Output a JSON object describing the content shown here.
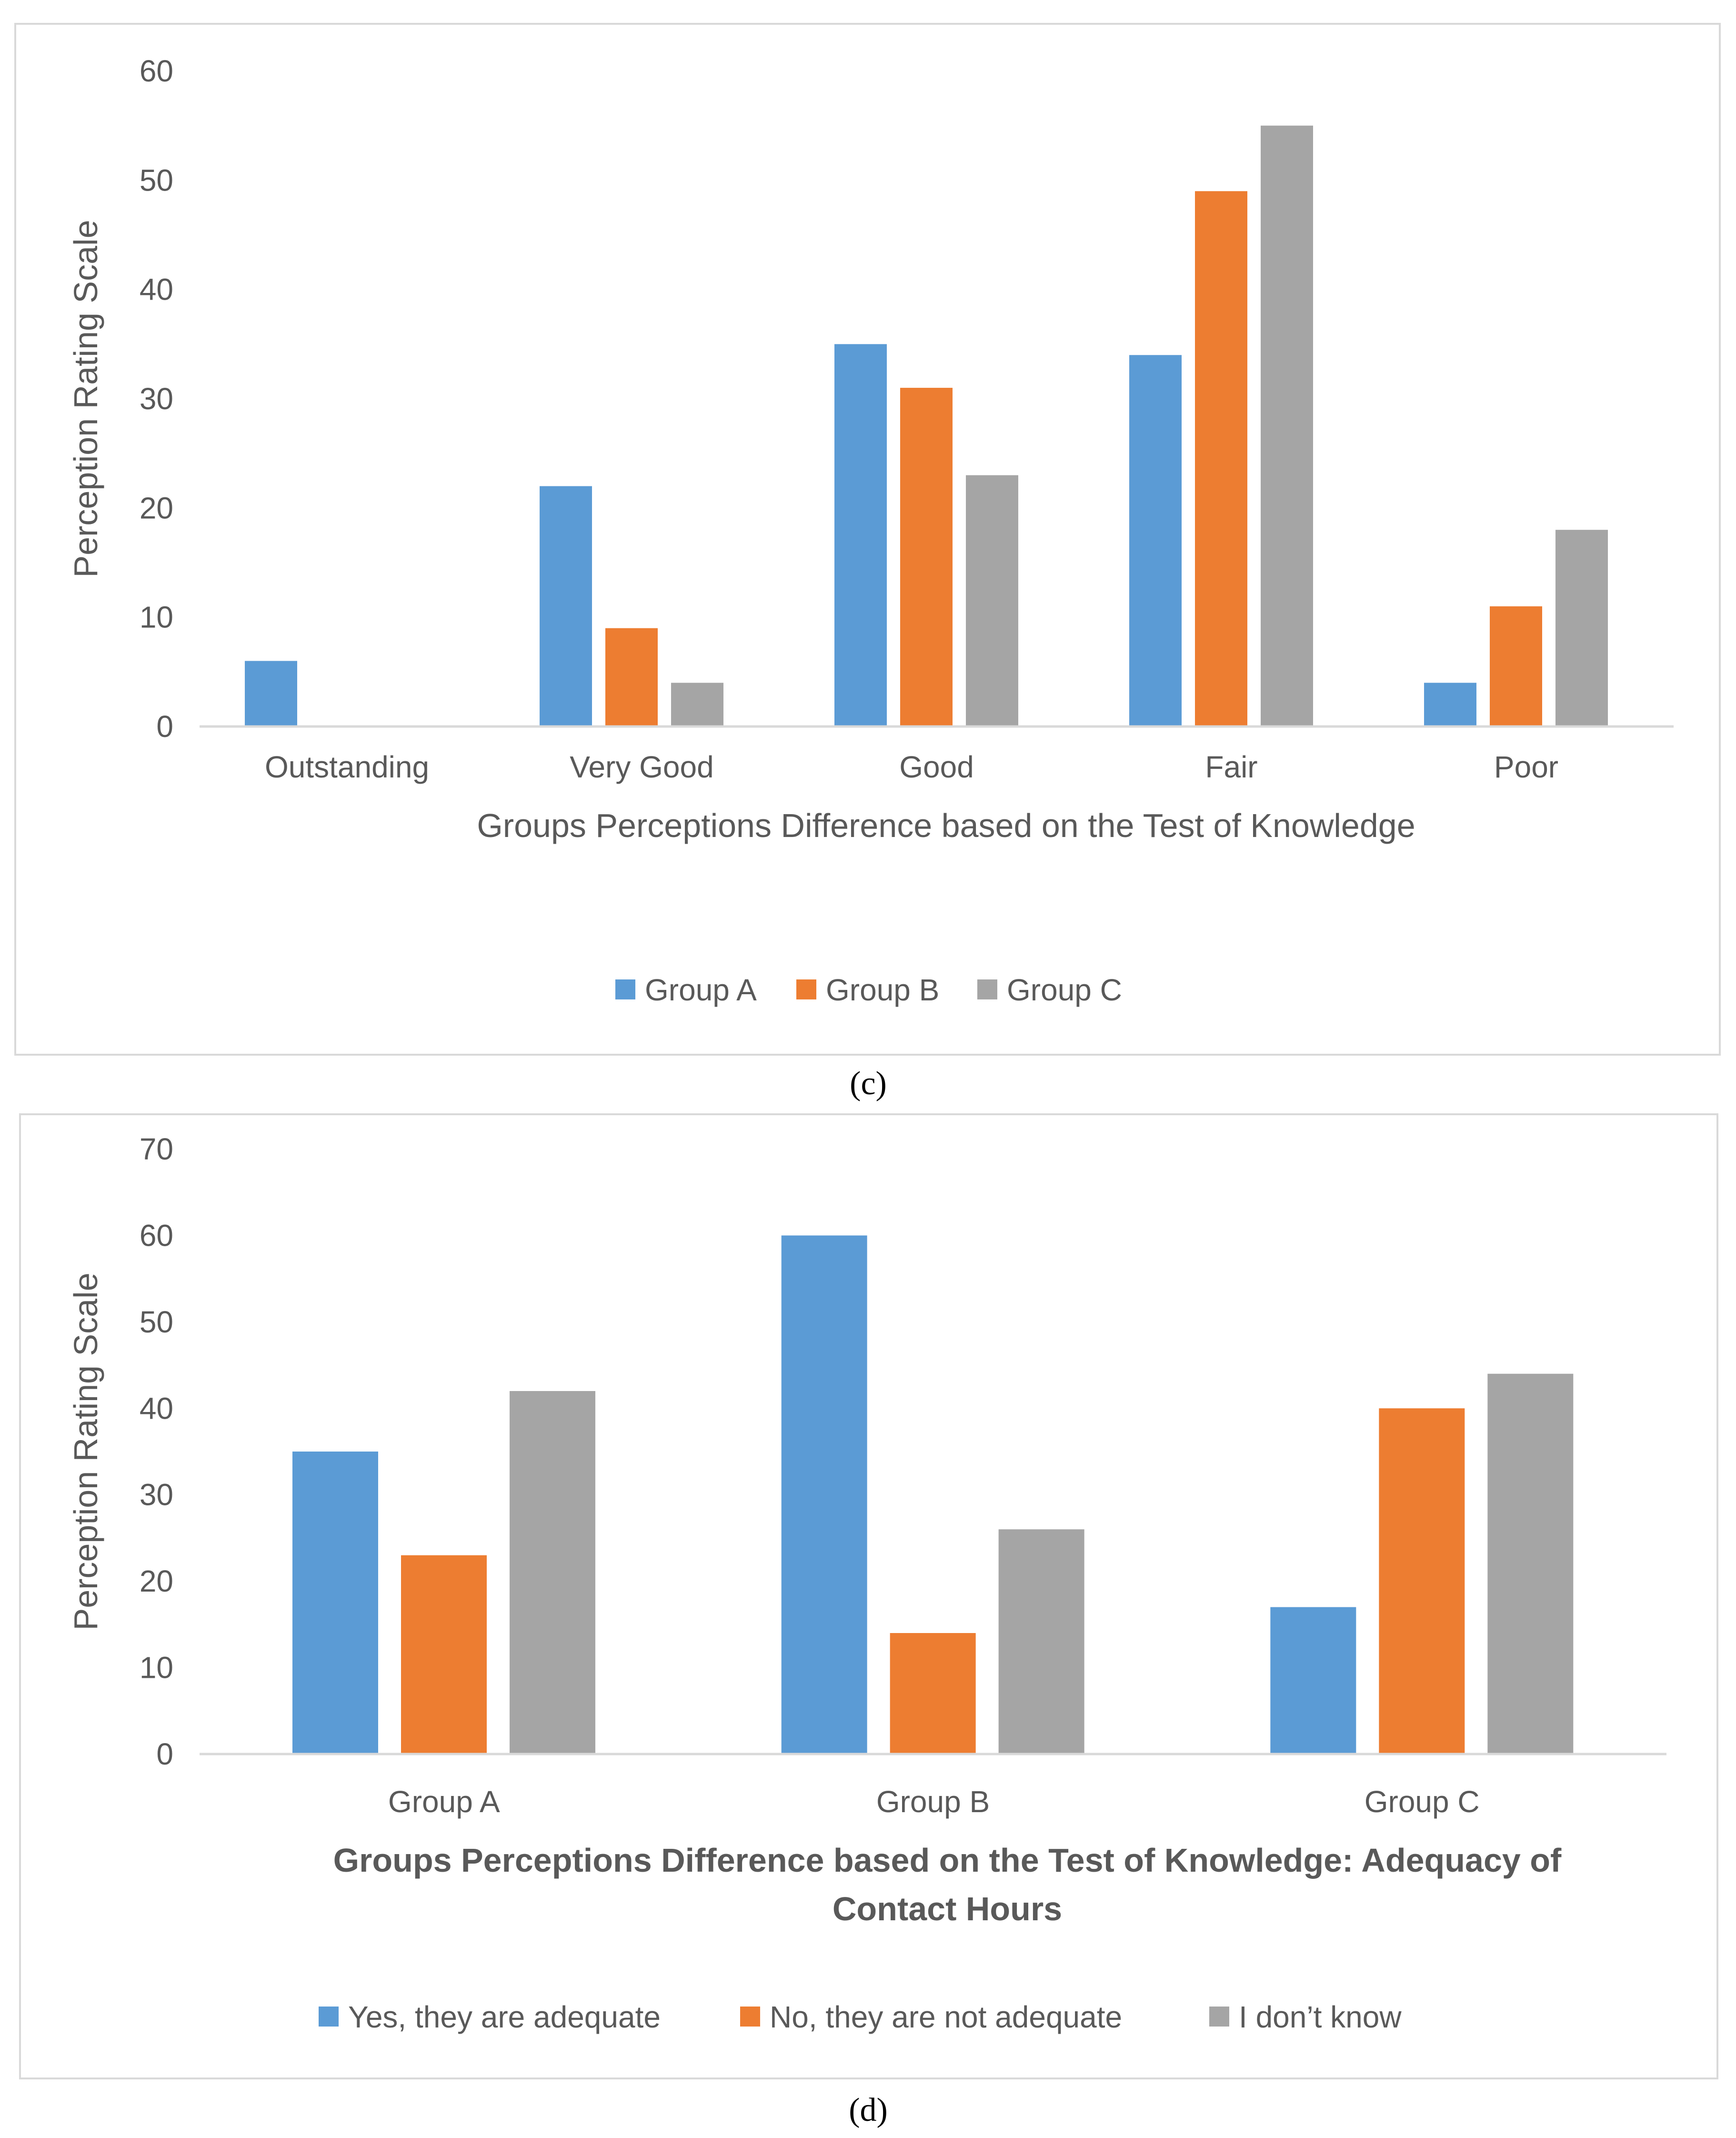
{
  "colors": {
    "blue": "#5b9bd5",
    "orange": "#ed7d31",
    "gray": "#a5a5a5",
    "axis": "#d9d9d9",
    "text": "#595959"
  },
  "captions": {
    "c": "(c)",
    "d": "(d)"
  },
  "chart_data": [
    {
      "type": "bar",
      "title": "",
      "xlabel": "Groups Perceptions Difference based on the Test of Knowledge",
      "ylabel": "Perception Rating Scale",
      "categories": [
        "Outstanding",
        "Very Good",
        "Good",
        "Fair",
        "Poor"
      ],
      "series": [
        {
          "name": "Group A",
          "color": "#5b9bd5",
          "values": [
            6,
            22,
            35,
            34,
            4
          ]
        },
        {
          "name": "Group B",
          "color": "#ed7d31",
          "values": [
            0,
            9,
            31,
            49,
            11
          ]
        },
        {
          "name": "Group C",
          "color": "#a5a5a5",
          "values": [
            0,
            4,
            23,
            55,
            18
          ]
        }
      ],
      "ylim": [
        0,
        60
      ],
      "yticks": [
        0,
        10,
        20,
        30,
        40,
        50,
        60
      ],
      "grid": false,
      "legend": "bottom"
    },
    {
      "type": "bar",
      "title": "",
      "xlabel": "Groups Perceptions Difference based on the Test of Knowledge: Adequacy of Contact Hours",
      "xlabel_lines": [
        "Groups Perceptions Difference based on the Test of Knowledge: Adequacy of",
        "Contact Hours"
      ],
      "ylabel": "Perception Rating Scale",
      "categories": [
        "Group A",
        "Group B",
        "Group C"
      ],
      "series": [
        {
          "name": "Yes, they are adequate",
          "color": "#5b9bd5",
          "values": [
            35,
            60,
            17
          ]
        },
        {
          "name": "No, they are not adequate",
          "color": "#ed7d31",
          "values": [
            23,
            14,
            40
          ]
        },
        {
          "name": "I don’t know",
          "color": "#a5a5a5",
          "values": [
            42,
            26,
            44
          ]
        }
      ],
      "ylim": [
        0,
        70
      ],
      "yticks": [
        0,
        10,
        20,
        30,
        40,
        50,
        60,
        70
      ],
      "grid": false,
      "legend": "bottom"
    }
  ]
}
